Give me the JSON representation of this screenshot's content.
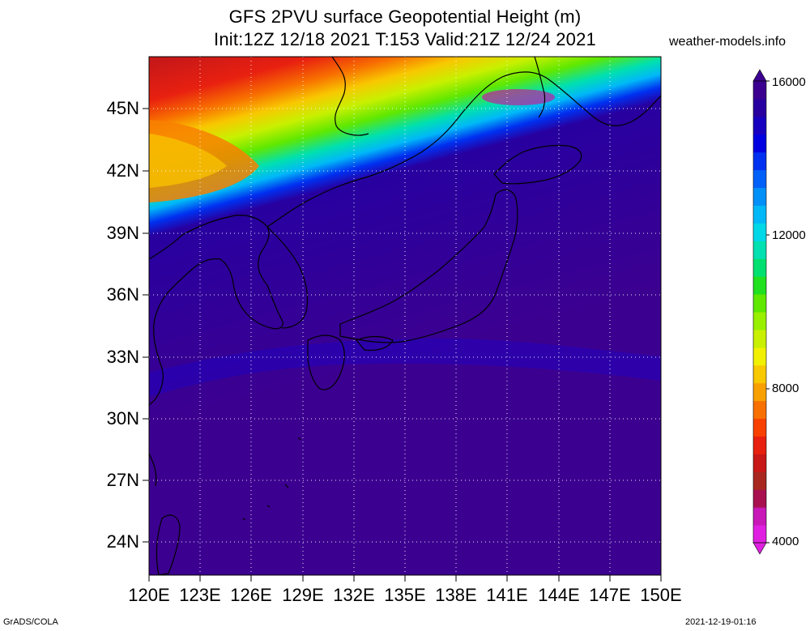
{
  "title": {
    "line1": "GFS 2PVU surface Geopotential Height (m)",
    "line2": "Init:12Z 12/18 2021 T:153 Valid:21Z 12/24 2021"
  },
  "site_label": "weather-models.info",
  "footer": {
    "left": "GrADS/COLA",
    "right": "2021-12-19-01:16"
  },
  "axes": {
    "lat_labels": [
      "45N",
      "42N",
      "39N",
      "36N",
      "33N",
      "30N",
      "27N",
      "24N"
    ],
    "lon_labels": [
      "120E",
      "123E",
      "126E",
      "129E",
      "132E",
      "135E",
      "138E",
      "141E",
      "144E",
      "147E",
      "150E"
    ],
    "lat_range": [
      22.5,
      47.5
    ],
    "lon_range": [
      120,
      150
    ],
    "grid": "dotted"
  },
  "colorbar": {
    "labels": [
      "16000",
      "12000",
      "8000",
      "4000"
    ],
    "range": [
      4000,
      16000
    ],
    "colors": [
      "#e020e0",
      "#c818b8",
      "#a81050",
      "#a82820",
      "#c81818",
      "#e82010",
      "#f84000",
      "#f87000",
      "#f8a000",
      "#f8c800",
      "#f0f000",
      "#c8f000",
      "#98f000",
      "#60e800",
      "#20e020",
      "#00e070",
      "#00e0b0",
      "#00d8e8",
      "#00b8f8",
      "#0090f8",
      "#0060f8",
      "#0030f0",
      "#0000e0",
      "#1800c0",
      "#2800a0",
      "#3c0090"
    ]
  },
  "map": {
    "projection": "lat-lon",
    "colors": {
      "deep_south": "#3c0090",
      "north": "#b81818"
    }
  }
}
